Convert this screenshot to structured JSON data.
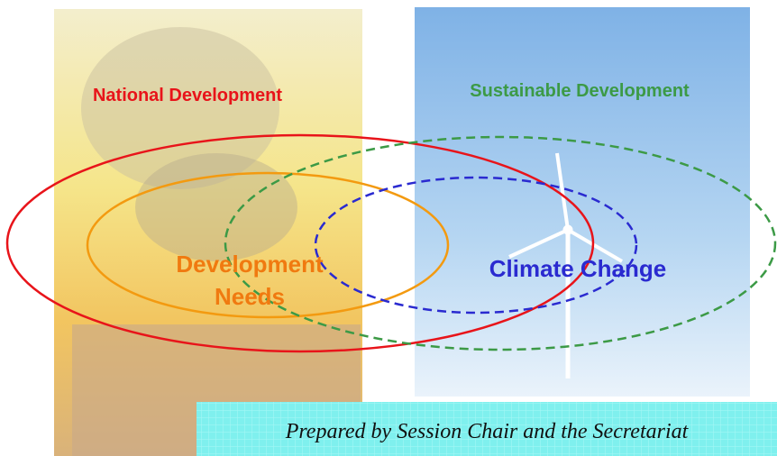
{
  "nodes": [
    {
      "label": "National Development"
    },
    {
      "label": "Sustainable Development"
    },
    {
      "label": "Development"
    },
    {
      "label": "Needs"
    },
    {
      "label": "Climate Change"
    }
  ],
  "footer": {
    "text": "Prepared by Session Chair and the Secretariat"
  }
}
